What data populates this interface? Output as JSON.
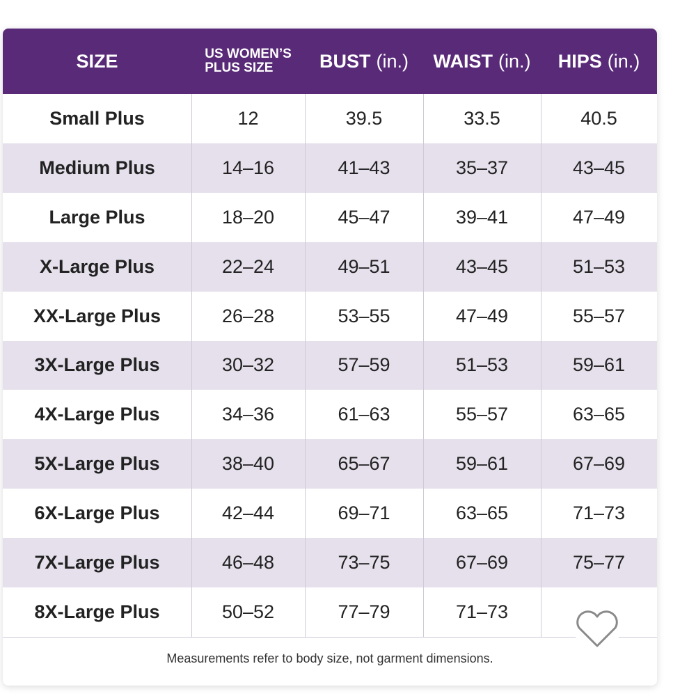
{
  "table": {
    "header": [
      {
        "lines": [
          "SIZE"
        ]
      },
      {
        "lines": [
          "US WOMEN’S",
          "PLUS SIZE"
        ]
      },
      {
        "lines": [
          "BUST"
        ],
        "unit": "(in.)"
      },
      {
        "lines": [
          "WAIST"
        ],
        "unit": "(in.)"
      },
      {
        "lines": [
          "HIPS"
        ],
        "unit": "(in.)"
      }
    ],
    "rows": [
      [
        "Small Plus",
        "12",
        "39.5",
        "33.5",
        "40.5"
      ],
      [
        "Medium Plus",
        "14–16",
        "41–43",
        "35–37",
        "43–45"
      ],
      [
        "Large Plus",
        "18–20",
        "45–47",
        "39–41",
        "47–49"
      ],
      [
        "X-Large Plus",
        "22–24",
        "49–51",
        "43–45",
        "51–53"
      ],
      [
        "XX-Large Plus",
        "26–28",
        "53–55",
        "47–49",
        "55–57"
      ],
      [
        "3X-Large Plus",
        "30–32",
        "57–59",
        "51–53",
        "59–61"
      ],
      [
        "4X-Large Plus",
        "34–36",
        "61–63",
        "55–57",
        "63–65"
      ],
      [
        "5X-Large Plus",
        "38–40",
        "65–67",
        "59–61",
        "67–69"
      ],
      [
        "6X-Large Plus",
        "42–44",
        "69–71",
        "63–65",
        "71–73"
      ],
      [
        "7X-Large Plus",
        "46–48",
        "73–75",
        "67–69",
        "75–77"
      ],
      [
        "8X-Large Plus",
        "50–52",
        "77–79",
        "71–73",
        null
      ]
    ],
    "note": "Measurements refer to body size, not garment dimensions."
  }
}
